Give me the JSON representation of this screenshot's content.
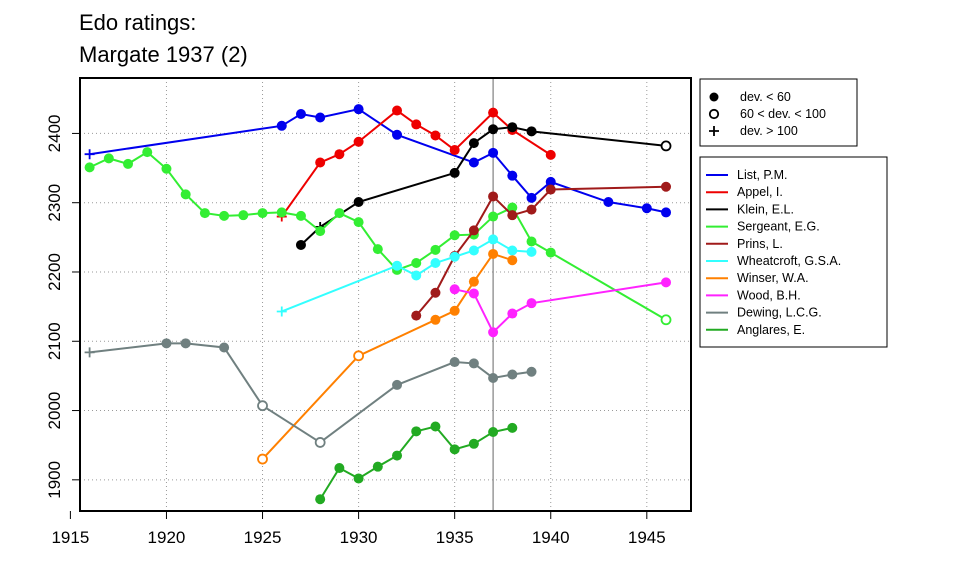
{
  "chart_data": {
    "type": "line",
    "title": [
      "Edo ratings:",
      "Margate 1937 (2)"
    ],
    "xlim": [
      1915.5,
      1947.3
    ],
    "ylim": [
      1855,
      2480
    ],
    "x_ticks": [
      1915,
      1920,
      1925,
      1930,
      1935,
      1940,
      1945
    ],
    "y_ticks": [
      1900,
      2000,
      2100,
      2200,
      2300,
      2400
    ],
    "grid": true,
    "reference_line_x": 1937,
    "deviation_legend": [
      "dev. < 60",
      "60 < dev. < 100",
      "dev. > 100"
    ],
    "series": [
      {
        "name": "List, P.M.",
        "color": "#0000ee",
        "points": [
          {
            "x": 1916,
            "y": 2370,
            "dev": "big"
          },
          {
            "x": 1926,
            "y": 2411,
            "dev": "small"
          },
          {
            "x": 1927,
            "y": 2428,
            "dev": "small"
          },
          {
            "x": 1928,
            "y": 2423,
            "dev": "small"
          },
          {
            "x": 1930,
            "y": 2435,
            "dev": "small"
          },
          {
            "x": 1932,
            "y": 2398,
            "dev": "small"
          },
          {
            "x": 1936,
            "y": 2358,
            "dev": "small"
          },
          {
            "x": 1937,
            "y": 2372,
            "dev": "small"
          },
          {
            "x": 1938,
            "y": 2339,
            "dev": "small"
          },
          {
            "x": 1939,
            "y": 2307,
            "dev": "small"
          },
          {
            "x": 1940,
            "y": 2330,
            "dev": "small"
          },
          {
            "x": 1943,
            "y": 2301,
            "dev": "small"
          },
          {
            "x": 1945,
            "y": 2292,
            "dev": "small"
          },
          {
            "x": 1946,
            "y": 2286,
            "dev": "small"
          }
        ]
      },
      {
        "name": "Appel, I.",
        "color": "#ee0000",
        "points": [
          {
            "x": 1926,
            "y": 2280,
            "dev": "big"
          },
          {
            "x": 1928,
            "y": 2358,
            "dev": "small"
          },
          {
            "x": 1929,
            "y": 2370,
            "dev": "small"
          },
          {
            "x": 1930,
            "y": 2388,
            "dev": "small"
          },
          {
            "x": 1932,
            "y": 2433,
            "dev": "small"
          },
          {
            "x": 1933,
            "y": 2413,
            "dev": "small"
          },
          {
            "x": 1934,
            "y": 2397,
            "dev": "small"
          },
          {
            "x": 1935,
            "y": 2376,
            "dev": "small"
          },
          {
            "x": 1937,
            "y": 2430,
            "dev": "small"
          },
          {
            "x": 1938,
            "y": 2405,
            "dev": "small"
          },
          {
            "x": 1940,
            "y": 2369,
            "dev": "small"
          }
        ]
      },
      {
        "name": "Klein, E.L.",
        "color": "#000000",
        "points": [
          {
            "x": 1927,
            "y": 2239,
            "dev": "small"
          },
          {
            "x": 1928,
            "y": 2265,
            "dev": "big"
          },
          {
            "x": 1930,
            "y": 2301,
            "dev": "small"
          },
          {
            "x": 1935,
            "y": 2343,
            "dev": "small"
          },
          {
            "x": 1936,
            "y": 2386,
            "dev": "small"
          },
          {
            "x": 1937,
            "y": 2406,
            "dev": "small"
          },
          {
            "x": 1938,
            "y": 2409,
            "dev": "small"
          },
          {
            "x": 1939,
            "y": 2403,
            "dev": "small"
          },
          {
            "x": 1946,
            "y": 2382,
            "dev": "mid"
          }
        ]
      },
      {
        "name": "Sergeant, E.G.",
        "color": "#33ee33",
        "points": [
          {
            "x": 1916,
            "y": 2351,
            "dev": "small"
          },
          {
            "x": 1917,
            "y": 2364,
            "dev": "small"
          },
          {
            "x": 1918,
            "y": 2356,
            "dev": "small"
          },
          {
            "x": 1919,
            "y": 2373,
            "dev": "small"
          },
          {
            "x": 1920,
            "y": 2349,
            "dev": "small"
          },
          {
            "x": 1921,
            "y": 2312,
            "dev": "small"
          },
          {
            "x": 1922,
            "y": 2285,
            "dev": "small"
          },
          {
            "x": 1923,
            "y": 2281,
            "dev": "small"
          },
          {
            "x": 1924,
            "y": 2282,
            "dev": "small"
          },
          {
            "x": 1925,
            "y": 2285,
            "dev": "small"
          },
          {
            "x": 1926,
            "y": 2286,
            "dev": "small"
          },
          {
            "x": 1927,
            "y": 2281,
            "dev": "small"
          },
          {
            "x": 1928,
            "y": 2259,
            "dev": "small"
          },
          {
            "x": 1929,
            "y": 2285,
            "dev": "small"
          },
          {
            "x": 1930,
            "y": 2272,
            "dev": "small"
          },
          {
            "x": 1931,
            "y": 2233,
            "dev": "small"
          },
          {
            "x": 1932,
            "y": 2203,
            "dev": "small"
          },
          {
            "x": 1933,
            "y": 2213,
            "dev": "small"
          },
          {
            "x": 1934,
            "y": 2232,
            "dev": "small"
          },
          {
            "x": 1935,
            "y": 2253,
            "dev": "small"
          },
          {
            "x": 1936,
            "y": 2254,
            "dev": "small"
          },
          {
            "x": 1937,
            "y": 2280,
            "dev": "small"
          },
          {
            "x": 1938,
            "y": 2293,
            "dev": "small"
          },
          {
            "x": 1939,
            "y": 2244,
            "dev": "small"
          },
          {
            "x": 1940,
            "y": 2228,
            "dev": "small"
          },
          {
            "x": 1946,
            "y": 2131,
            "dev": "mid"
          }
        ]
      },
      {
        "name": "Prins, L.",
        "color": "#a01a1a",
        "points": [
          {
            "x": 1933,
            "y": 2137,
            "dev": "small"
          },
          {
            "x": 1934,
            "y": 2170,
            "dev": "small"
          },
          {
            "x": 1935,
            "y": 2223,
            "dev": "small"
          },
          {
            "x": 1936,
            "y": 2260,
            "dev": "small"
          },
          {
            "x": 1937,
            "y": 2309,
            "dev": "small"
          },
          {
            "x": 1938,
            "y": 2282,
            "dev": "small"
          },
          {
            "x": 1939,
            "y": 2290,
            "dev": "small"
          },
          {
            "x": 1940,
            "y": 2319,
            "dev": "small"
          },
          {
            "x": 1946,
            "y": 2323,
            "dev": "small"
          }
        ]
      },
      {
        "name": "Wheatcroft, G.S.A.",
        "color": "#33ffff",
        "points": [
          {
            "x": 1926,
            "y": 2143,
            "dev": "big"
          },
          {
            "x": 1932,
            "y": 2209,
            "dev": "small"
          },
          {
            "x": 1933,
            "y": 2195,
            "dev": "small"
          },
          {
            "x": 1934,
            "y": 2213,
            "dev": "small"
          },
          {
            "x": 1935,
            "y": 2222,
            "dev": "small"
          },
          {
            "x": 1936,
            "y": 2231,
            "dev": "small"
          },
          {
            "x": 1937,
            "y": 2247,
            "dev": "small"
          },
          {
            "x": 1938,
            "y": 2231,
            "dev": "small"
          },
          {
            "x": 1939,
            "y": 2229,
            "dev": "small"
          }
        ]
      },
      {
        "name": "Winser, W.A.",
        "color": "#ff8000",
        "points": [
          {
            "x": 1925,
            "y": 1930,
            "dev": "mid"
          },
          {
            "x": 1930,
            "y": 2079,
            "dev": "mid"
          },
          {
            "x": 1934,
            "y": 2131,
            "dev": "small"
          },
          {
            "x": 1935,
            "y": 2144,
            "dev": "small"
          },
          {
            "x": 1936,
            "y": 2186,
            "dev": "small"
          },
          {
            "x": 1937,
            "y": 2226,
            "dev": "small"
          },
          {
            "x": 1938,
            "y": 2217,
            "dev": "small"
          }
        ]
      },
      {
        "name": "Wood, B.H.",
        "color": "#ff22ff",
        "points": [
          {
            "x": 1935,
            "y": 2175,
            "dev": "small"
          },
          {
            "x": 1936,
            "y": 2169,
            "dev": "small"
          },
          {
            "x": 1937,
            "y": 2113,
            "dev": "small"
          },
          {
            "x": 1938,
            "y": 2140,
            "dev": "small"
          },
          {
            "x": 1939,
            "y": 2155,
            "dev": "small"
          },
          {
            "x": 1946,
            "y": 2185,
            "dev": "small"
          }
        ]
      },
      {
        "name": "Dewing, L.C.G.",
        "color": "#708080",
        "points": [
          {
            "x": 1916,
            "y": 2084,
            "dev": "big"
          },
          {
            "x": 1920,
            "y": 2097,
            "dev": "small"
          },
          {
            "x": 1921,
            "y": 2097,
            "dev": "small"
          },
          {
            "x": 1923,
            "y": 2091,
            "dev": "small"
          },
          {
            "x": 1925,
            "y": 2007,
            "dev": "mid"
          },
          {
            "x": 1928,
            "y": 1954,
            "dev": "mid"
          },
          {
            "x": 1932,
            "y": 2037,
            "dev": "small"
          },
          {
            "x": 1935,
            "y": 2070,
            "dev": "small"
          },
          {
            "x": 1936,
            "y": 2068,
            "dev": "small"
          },
          {
            "x": 1937,
            "y": 2047,
            "dev": "small"
          },
          {
            "x": 1938,
            "y": 2052,
            "dev": "small"
          },
          {
            "x": 1939,
            "y": 2056,
            "dev": "small"
          }
        ]
      },
      {
        "name": "Anglares, E.",
        "color": "#22aa22",
        "points": [
          {
            "x": 1928,
            "y": 1872,
            "dev": "small"
          },
          {
            "x": 1929,
            "y": 1917,
            "dev": "small"
          },
          {
            "x": 1930,
            "y": 1902,
            "dev": "small"
          },
          {
            "x": 1931,
            "y": 1919,
            "dev": "small"
          },
          {
            "x": 1932,
            "y": 1935,
            "dev": "small"
          },
          {
            "x": 1933,
            "y": 1970,
            "dev": "small"
          },
          {
            "x": 1934,
            "y": 1977,
            "dev": "small"
          },
          {
            "x": 1935,
            "y": 1944,
            "dev": "small"
          },
          {
            "x": 1936,
            "y": 1952,
            "dev": "small"
          },
          {
            "x": 1937,
            "y": 1969,
            "dev": "small"
          },
          {
            "x": 1938,
            "y": 1975,
            "dev": "small"
          }
        ]
      }
    ]
  }
}
